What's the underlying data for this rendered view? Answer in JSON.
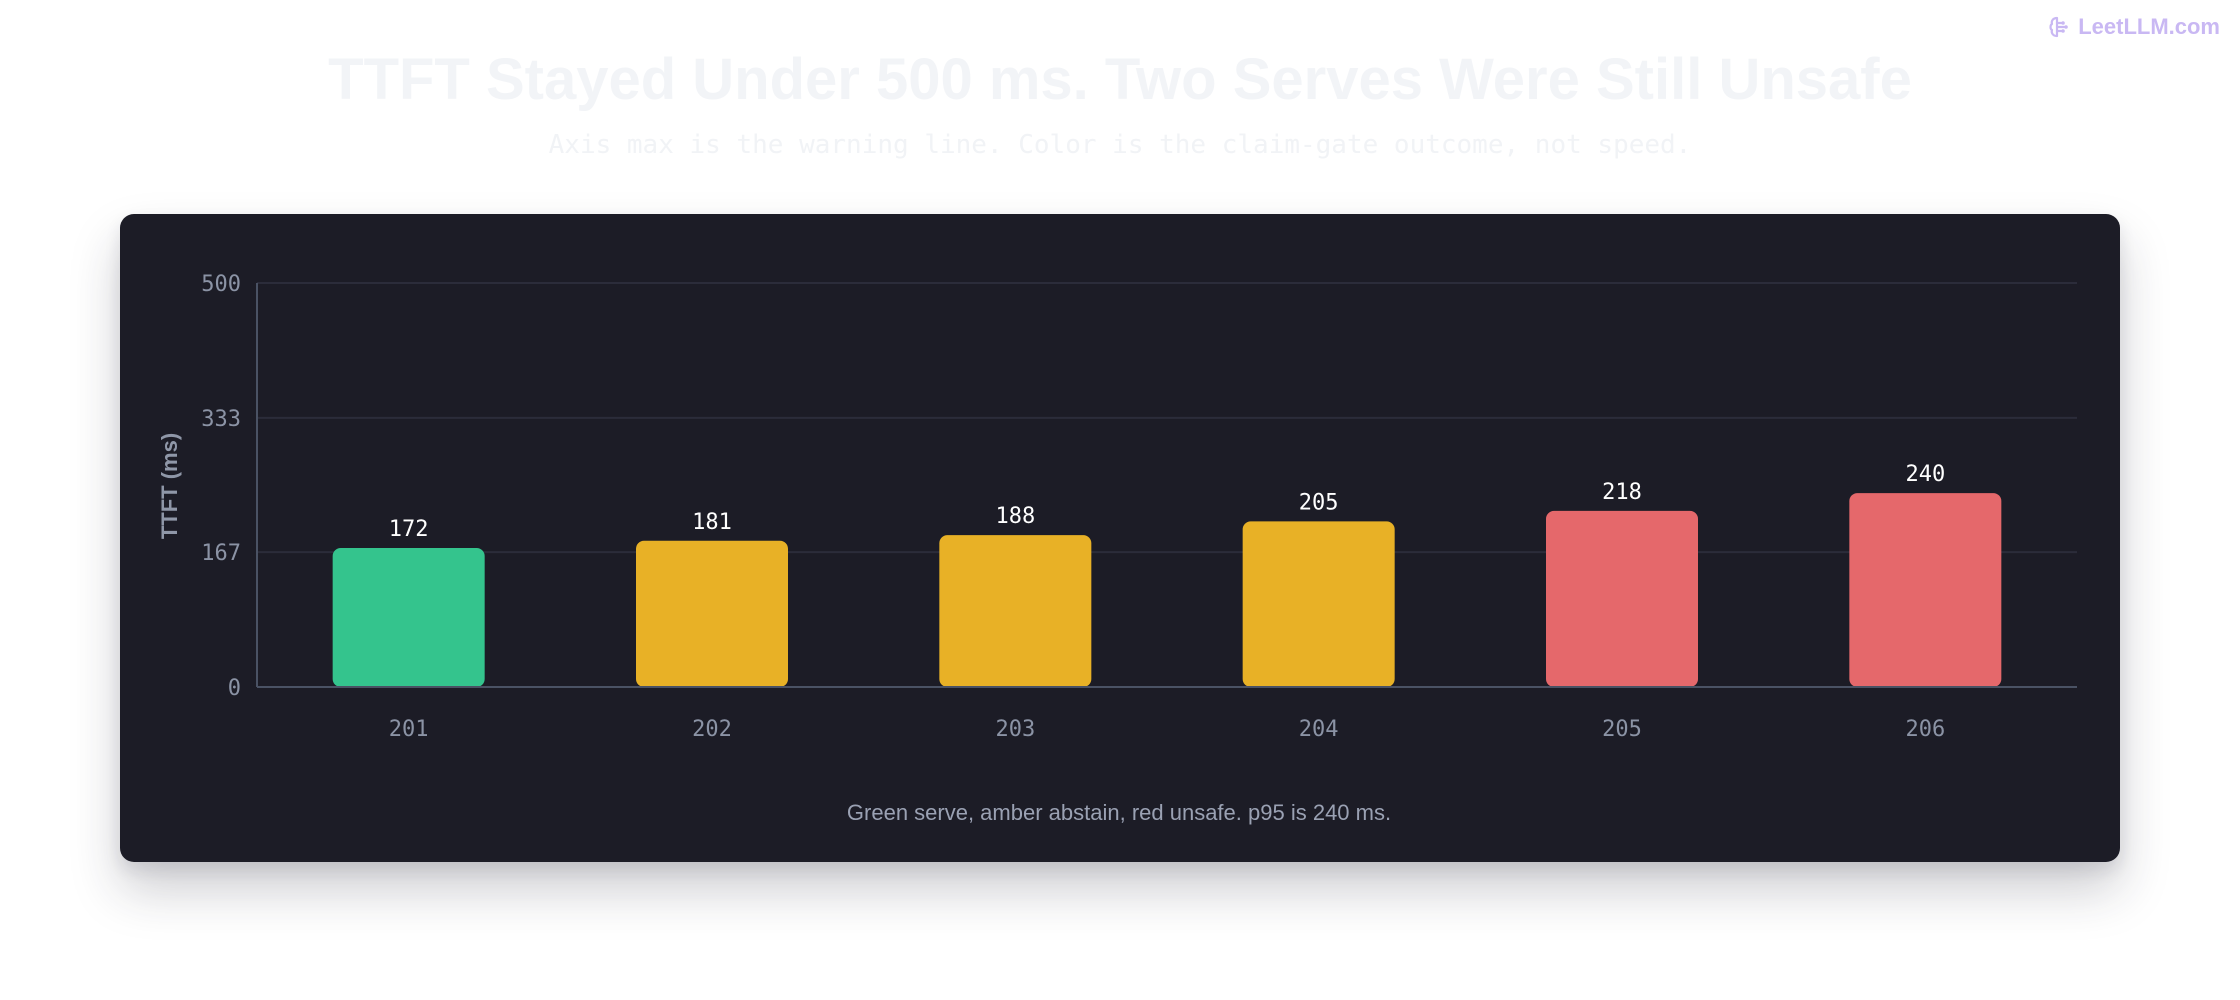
{
  "brand": {
    "name": "LeetLLM.com",
    "icon": "brain-icon"
  },
  "header": {
    "title": "TTFT Stayed Under 500 ms. Two Serves Were Still Unsafe",
    "subtitle": "Axis max is the warning line. Color is the claim-gate outcome, not speed."
  },
  "caption": "Green serve, amber abstain, red unsafe. p95 is 240 ms.",
  "colors": {
    "serve": "#34c48d",
    "abstain": "#e8b126",
    "unsafe": "#e5686b",
    "card_bg": "#1c1c26",
    "grid": "#2b2c3a",
    "axis": "#4a5264"
  },
  "chart_data": {
    "type": "bar",
    "title": "TTFT Stayed Under 500 ms. Two Serves Were Still Unsafe",
    "subtitle": "Axis max is the warning line. Color is the claim-gate outcome, not speed.",
    "xlabel": "",
    "ylabel": "TTFT (ms)",
    "ylim": [
      0,
      500
    ],
    "yticks": [
      0,
      167,
      333,
      500
    ],
    "grid": true,
    "categories": [
      "201",
      "202",
      "203",
      "204",
      "205",
      "206"
    ],
    "values": [
      172,
      181,
      188,
      205,
      218,
      240
    ],
    "outcomes": [
      "serve",
      "abstain",
      "abstain",
      "abstain",
      "unsafe",
      "unsafe"
    ],
    "legend": "none"
  }
}
